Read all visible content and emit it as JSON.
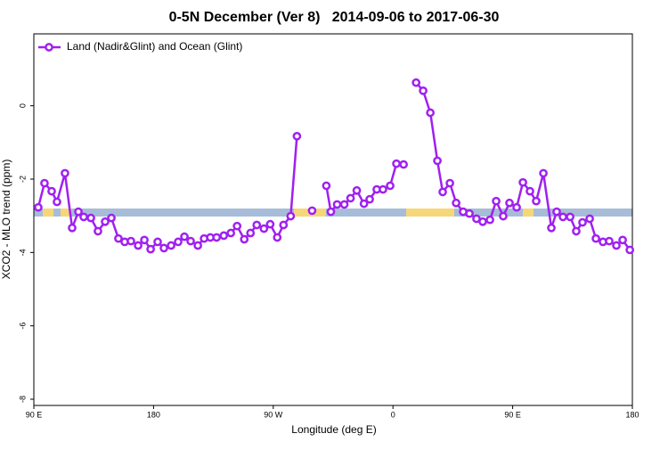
{
  "chart_data": {
    "type": "line",
    "title": "0-5N December (Ver 8)   2014-09-06 to 2017-06-30",
    "x_label": "Longitude (deg E)",
    "y_label": "XCO2 - MLO trend (ppm)",
    "xlim": [
      90,
      540
    ],
    "ylim": [
      -8.17,
      1.96
    ],
    "xticks": [
      {
        "value": 90,
        "label": "90 E"
      },
      180,
      {
        "value": 270,
        "label": "90 W"
      },
      {
        "value": 360,
        "label": "0"
      },
      {
        "value": 450,
        "label": "90 E"
      },
      {
        "value": 540,
        "label": "180"
      }
    ],
    "yticks": [
      0,
      -2,
      -4,
      -6,
      -8
    ],
    "legend": "top-left",
    "x": [
      93.3,
      98.0,
      103.4,
      107.4,
      113.4,
      118.8,
      123.5,
      127.5,
      132.9,
      138.2,
      143.6,
      148.3,
      153.6,
      158.3,
      163.0,
      168.4,
      173.1,
      177.8,
      183.1,
      187.8,
      193.2,
      198.5,
      203.2,
      207.9,
      213.3,
      218.0,
      222.7,
      227.4,
      232.8,
      238.1,
      242.8,
      248.2,
      252.9,
      257.6,
      263.0,
      267.7,
      273.0,
      277.7,
      283.1,
      287.8,
      null,
      299.2,
      null,
      309.9,
      313.3,
      318.0,
      323.4,
      328.1,
      332.8,
      338.2,
      342.5,
      347.8,
      352.5,
      357.9,
      362.6,
      368.0,
      null,
      377.4,
      382.7,
      388.1,
      393.4,
      397.4,
      402.8,
      407.5,
      412.8,
      417.5,
      422.8,
      427.5,
      432.9,
      437.6,
      442.9,
      447.6,
      453.0,
      457.7,
      463.0,
      467.7,
      473.1,
      479.1,
      483.1,
      487.8,
      493.2,
      497.8,
      502.5,
      507.9,
      512.6,
      517.9,
      522.6,
      528.0,
      532.7,
      538.1
    ],
    "series": [
      {
        "name": "Land (Nadir&Glint) and Ocean (Glint)",
        "color": "#a020f0",
        "values": [
          -2.77,
          -2.11,
          -2.33,
          -2.62,
          -1.84,
          -3.33,
          -2.89,
          -3.03,
          -3.06,
          -3.42,
          -3.16,
          -3.06,
          -3.62,
          -3.71,
          -3.69,
          -3.81,
          -3.66,
          -3.91,
          -3.71,
          -3.88,
          -3.81,
          -3.71,
          -3.57,
          -3.69,
          -3.81,
          -3.62,
          -3.59,
          -3.59,
          -3.54,
          -3.47,
          -3.28,
          -3.64,
          -3.47,
          -3.25,
          -3.35,
          -3.23,
          -3.59,
          -3.25,
          -3.01,
          -0.83,
          null,
          -2.86,
          null,
          -2.18,
          -2.89,
          -2.69,
          -2.69,
          -2.52,
          -2.31,
          -2.67,
          -2.55,
          -2.28,
          -2.28,
          -2.18,
          -1.58,
          -1.6,
          null,
          0.63,
          0.41,
          -0.19,
          -1.5,
          -2.35,
          -2.11,
          -2.65,
          -2.89,
          -2.94,
          -3.08,
          -3.16,
          -3.11,
          -2.6,
          -3.01,
          -2.65,
          -2.77,
          -2.09,
          -2.33,
          -2.6,
          -1.84,
          -3.33,
          -2.89,
          -3.03,
          -3.03,
          -3.42,
          -3.18,
          -3.08,
          -3.62,
          -3.71,
          -3.69,
          -3.81,
          -3.66,
          -3.93
        ]
      }
    ]
  }
}
